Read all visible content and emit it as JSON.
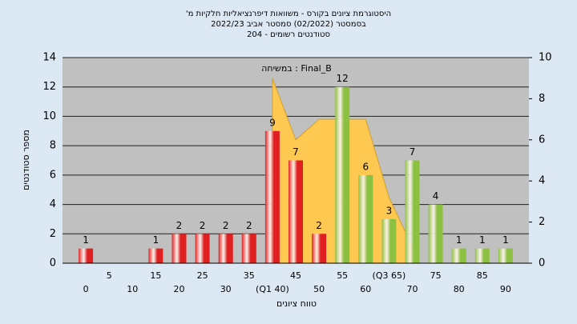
{
  "chart_data": {
    "type": "bar",
    "title": "היסטוגרמת ציונים בקורס - משוואות דיפרנציאליות חלקיות מ'",
    "subtitle": [
      "בסמסטר (02/2022) סמסטר אביב 2022/23",
      "סטודנטים רשומים - 204"
    ],
    "x_label": "טווח ציונים",
    "y_label": "מספר סטודנטים",
    "categories": [
      "0",
      "5",
      "10",
      "15",
      "20",
      "25",
      "30",
      "35",
      "(Q1 40)",
      "45",
      "50",
      "55",
      "60",
      "(Q3 65)",
      "70",
      "75",
      "80",
      "85",
      "90"
    ],
    "values": [
      1,
      0,
      0,
      1,
      2,
      2,
      2,
      2,
      9,
      7,
      2,
      12,
      6,
      3,
      7,
      4,
      1,
      1,
      1
    ],
    "colors": [
      "#e02020",
      "#e02020",
      "#e02020",
      "#e02020",
      "#e02020",
      "#e02020",
      "#e02020",
      "#e02020",
      "#e02020",
      "#e02020",
      "#e02020",
      "#8cc040",
      "#8cc040",
      "#8cc040",
      "#8cc040",
      "#8cc040",
      "#8cc040",
      "#8cc040",
      "#8cc040"
    ],
    "area_series": {
      "name": "במשיחה : Final_B",
      "color": "#ffc850",
      "axis": "y2",
      "values": [
        null,
        null,
        null,
        null,
        null,
        null,
        null,
        null,
        9,
        6,
        7,
        7,
        7,
        3.2,
        0.8,
        null,
        null,
        null,
        null
      ]
    },
    "ylim": [
      0,
      14
    ],
    "yticks": [
      0,
      2,
      4,
      6,
      8,
      10,
      12,
      14
    ],
    "y2lim": [
      0,
      10
    ],
    "y2ticks": [
      0,
      2,
      4,
      6,
      8,
      10
    ],
    "grid": true
  }
}
